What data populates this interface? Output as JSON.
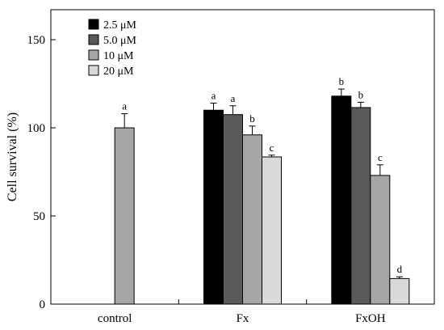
{
  "chart_data": {
    "type": "bar",
    "title": "",
    "xlabel": "",
    "ylabel": "Cell survival (%)",
    "ylim": [
      0,
      167
    ],
    "yticks": [
      0,
      50,
      100,
      150
    ],
    "groups": [
      "control",
      "Fx",
      "FxOH"
    ],
    "legend_position": "top-left",
    "series": [
      {
        "name": "2.5 μM",
        "color": "#000000",
        "values": [
          null,
          110,
          118
        ],
        "errors": [
          null,
          4,
          4
        ],
        "letters": [
          "",
          "a",
          "b"
        ]
      },
      {
        "name": "5.0 μM",
        "color": "#595959",
        "values": [
          null,
          107.5,
          111.5
        ],
        "errors": [
          null,
          5,
          3
        ],
        "letters": [
          "",
          "a",
          "b"
        ]
      },
      {
        "name": "10 μM",
        "color": "#a6a6a6",
        "values": [
          100,
          96,
          73
        ],
        "errors": [
          8,
          5,
          6
        ],
        "letters": [
          "a",
          "b",
          "c"
        ]
      },
      {
        "name": "20 μM",
        "color": "#d9d9d9",
        "values": [
          null,
          83.5,
          14.5
        ],
        "errors": [
          null,
          1,
          1
        ],
        "letters": [
          "",
          "c",
          "d"
        ]
      }
    ]
  }
}
